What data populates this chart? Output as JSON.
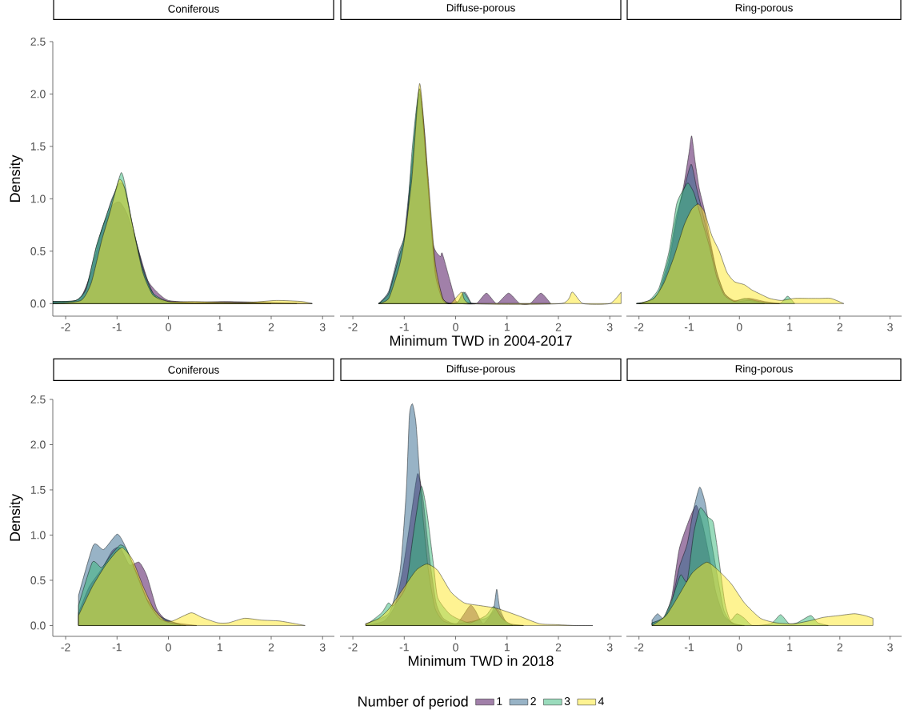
{
  "chart_data": [
    {
      "type": "area",
      "title": "Coniferous",
      "ylabel": "Density",
      "xlim": [
        -2.25,
        3.23
      ],
      "ylim": [
        -0.12,
        2.5
      ],
      "xticks": [
        -2,
        -1,
        0,
        1,
        2,
        3
      ],
      "yticks": [
        {
          "value": 0,
          "label": "0.0"
        },
        {
          "value": 0.5,
          "label": "0.5"
        },
        {
          "value": 1,
          "label": "1.0"
        },
        {
          "value": 1.5,
          "label": "1.5"
        },
        {
          "value": 2,
          "label": "2.0"
        },
        {
          "value": 2.5,
          "label": "2.5"
        }
      ],
      "series": [
        {
          "color": "#440154",
          "x": [
            -2.25,
            -1.9,
            -1.7,
            -1.5,
            -1.3,
            -1.1,
            -0.95,
            -0.8,
            -0.6,
            -0.4,
            -0.2,
            0,
            0.5,
            1.1,
            2,
            2.8
          ],
          "values": [
            0.02,
            0.02,
            0.06,
            0.3,
            0.7,
            0.93,
            0.97,
            0.85,
            0.54,
            0.22,
            0.1,
            0.03,
            0.01,
            0.02,
            0.01,
            0
          ]
        },
        {
          "color": "#31688e",
          "x": [
            -2.25,
            -1.8,
            -1.6,
            -1.4,
            -1.2,
            -1.1,
            -0.95,
            -0.85,
            -0.7,
            -0.5,
            -0.3,
            -0.1,
            0.5,
            1.5,
            2.5
          ],
          "values": [
            0.02,
            0.03,
            0.15,
            0.55,
            0.85,
            1.0,
            1.15,
            1.1,
            0.75,
            0.35,
            0.1,
            0.02,
            0.01,
            0.01,
            0
          ]
        },
        {
          "color": "#35b779",
          "x": [
            -2.25,
            -1.8,
            -1.6,
            -1.4,
            -1.2,
            -1.05,
            -0.92,
            -0.85,
            -0.7,
            -0.5,
            -0.3,
            0,
            0.5,
            2
          ],
          "values": [
            0.02,
            0.03,
            0.14,
            0.55,
            0.85,
            1.05,
            1.25,
            1.15,
            0.75,
            0.33,
            0.1,
            0.02,
            0,
            0
          ]
        },
        {
          "color": "#fde725",
          "x": [
            -2.25,
            -1.7,
            -1.5,
            -1.3,
            -1.15,
            -0.96,
            -0.85,
            -0.7,
            -0.5,
            -0.3,
            0,
            0.5,
            1.5,
            2.1,
            2.6,
            2.8
          ],
          "values": [
            0,
            0.03,
            0.2,
            0.6,
            0.85,
            1.18,
            1.1,
            0.75,
            0.3,
            0.08,
            0.02,
            0.02,
            0.01,
            0.03,
            0.02,
            0
          ]
        }
      ]
    },
    {
      "type": "area",
      "title": "Diffuse-porous",
      "xlabel": "Minimum TWD in 2004-2017",
      "tick_labels": "x",
      "xlim": [
        -2.25,
        3.23
      ],
      "ylim": [
        -0.12,
        2.5
      ],
      "xticks": [
        -2,
        -1,
        0,
        1,
        2,
        3
      ],
      "series": [
        {
          "color": "#440154",
          "x": [
            -1.5,
            -1.3,
            -1.1,
            -1.0,
            -0.85,
            -0.7,
            -0.6,
            -0.45,
            -0.3,
            -0.26,
            -0.1,
            0.0,
            0.1,
            0.4,
            0.6,
            0.8,
            1.03,
            1.25,
            1.45,
            1.66,
            1.85
          ],
          "values": [
            0,
            0.1,
            0.45,
            0.6,
            1.3,
            2.0,
            1.6,
            0.6,
            0.45,
            0.48,
            0.2,
            0.03,
            0,
            0,
            0.1,
            0,
            0.1,
            0,
            0,
            0.1,
            0
          ]
        },
        {
          "color": "#31688e",
          "x": [
            -1.5,
            -1.3,
            -1.1,
            -1.0,
            -0.85,
            -0.7,
            -0.55,
            -0.4,
            -0.25,
            -0.1,
            0.05,
            0.18,
            0.3,
            0.4
          ],
          "values": [
            0,
            0.12,
            0.5,
            0.65,
            1.35,
            2.05,
            1.2,
            0.35,
            0.05,
            0,
            0.02,
            0.11,
            0.01,
            0
          ]
        },
        {
          "color": "#35b779",
          "x": [
            -1.5,
            -1.3,
            -1.1,
            -0.95,
            -0.85,
            -0.7,
            -0.55,
            -0.4,
            -0.25,
            -0.1,
            0.05,
            0.15,
            0.3
          ],
          "values": [
            0,
            0.1,
            0.45,
            0.75,
            1.45,
            2.05,
            1.2,
            0.3,
            0.03,
            0,
            0.02,
            0.11,
            0
          ]
        },
        {
          "color": "#fde725",
          "x": [
            -1.5,
            -1.3,
            -1.1,
            -1.0,
            -0.85,
            -0.7,
            -0.55,
            -0.4,
            -0.25,
            -0.1,
            0.12,
            0.3,
            2.05,
            2.27,
            2.48,
            3.0,
            3.22
          ],
          "values": [
            0,
            0.05,
            0.35,
            0.6,
            1.2,
            2.1,
            1.3,
            0.4,
            0.05,
            0,
            0.11,
            0,
            0,
            0.11,
            0,
            0,
            0.11
          ]
        }
      ]
    },
    {
      "type": "area",
      "title": "Ring-porous",
      "tick_labels": "x",
      "xlim": [
        -2.25,
        3.23
      ],
      "ylim": [
        -0.12,
        2.5
      ],
      "xticks": [
        -2,
        -1,
        0,
        1,
        2,
        3
      ],
      "series": [
        {
          "color": "#440154",
          "x": [
            -2.05,
            -1.8,
            -1.6,
            -1.4,
            -1.25,
            -1.1,
            -1.0,
            -0.95,
            -0.88,
            -0.8,
            -0.7,
            -0.6,
            -0.45,
            -0.3,
            -0.1,
            0.2,
            0.5,
            0.8
          ],
          "values": [
            0,
            0.02,
            0.1,
            0.4,
            0.8,
            1.15,
            1.45,
            1.6,
            1.35,
            1.1,
            0.9,
            0.65,
            0.3,
            0.1,
            0.03,
            0.05,
            0.02,
            0
          ]
        },
        {
          "color": "#31688e",
          "x": [
            -2.05,
            -1.8,
            -1.6,
            -1.4,
            -1.25,
            -1.1,
            -0.96,
            -0.85,
            -0.75,
            -0.6,
            -0.45,
            -0.3,
            -0.1,
            0.2,
            0.5
          ],
          "values": [
            0,
            0.02,
            0.12,
            0.45,
            0.85,
            1.1,
            1.33,
            1.1,
            0.9,
            0.6,
            0.3,
            0.1,
            0.02,
            0.03,
            0
          ]
        },
        {
          "color": "#35b779",
          "x": [
            -2.05,
            -1.8,
            -1.6,
            -1.4,
            -1.25,
            -1.1,
            -1.02,
            -0.9,
            -0.75,
            -0.6,
            -0.45,
            -0.3,
            -0.1,
            0.1,
            0.4,
            0.8,
            0.96,
            1.1
          ],
          "values": [
            0,
            0.03,
            0.15,
            0.5,
            0.95,
            1.1,
            1.15,
            1.05,
            0.8,
            0.55,
            0.25,
            0.08,
            0.02,
            0.05,
            0.02,
            0,
            0.07,
            0
          ]
        },
        {
          "color": "#fde725",
          "x": [
            -2.0,
            -1.7,
            -1.5,
            -1.3,
            -1.1,
            -0.95,
            -0.82,
            -0.7,
            -0.55,
            -0.4,
            -0.25,
            -0.1,
            0.1,
            0.25,
            0.42,
            0.6,
            0.83,
            1.1,
            1.35,
            1.6,
            1.82,
            2.08
          ],
          "values": [
            0,
            0.05,
            0.2,
            0.45,
            0.75,
            0.9,
            0.95,
            0.88,
            0.65,
            0.5,
            0.3,
            0.21,
            0.18,
            0.13,
            0.09,
            0.05,
            0.03,
            0.05,
            0.05,
            0.05,
            0.05,
            0
          ]
        }
      ]
    },
    {
      "type": "area",
      "title": "Coniferous",
      "ylabel": "Density",
      "xlim": [
        -2.25,
        3.23
      ],
      "ylim": [
        -0.12,
        2.5
      ],
      "xticks": [
        -2,
        -1,
        0,
        1,
        2,
        3
      ],
      "yticks": [
        {
          "value": 0,
          "label": "0.0"
        },
        {
          "value": 0.5,
          "label": "0.5"
        },
        {
          "value": 1,
          "label": "1.0"
        },
        {
          "value": 1.5,
          "label": "1.5"
        },
        {
          "value": 2,
          "label": "2.0"
        },
        {
          "value": 2.5,
          "label": "2.5"
        }
      ],
      "series": [
        {
          "color": "#440154",
          "x": [
            -1.75,
            -1.54,
            -1.28,
            -1.09,
            -0.94,
            -0.76,
            -0.57,
            -0.42,
            -0.23,
            -0.08,
            0.13,
            0.55
          ],
          "values": [
            0.14,
            0.43,
            0.64,
            0.83,
            0.86,
            0.67,
            0.7,
            0.55,
            0.19,
            0.08,
            0.03,
            0
          ]
        },
        {
          "color": "#31688e",
          "x": [
            -1.75,
            -1.46,
            -1.26,
            -1.0,
            -0.86,
            -0.65,
            -0.44,
            -0.18,
            0.03,
            0.23
          ],
          "values": [
            0.33,
            0.89,
            0.84,
            1.01,
            0.9,
            0.61,
            0.31,
            0.11,
            0.05,
            0.01
          ]
        },
        {
          "color": "#35b779",
          "x": [
            -1.75,
            -1.48,
            -1.3,
            -1.12,
            -0.94,
            -0.81,
            -0.6,
            -0.39,
            -0.18,
            0.03,
            0.34
          ],
          "values": [
            0.22,
            0.7,
            0.64,
            0.78,
            0.89,
            0.84,
            0.55,
            0.25,
            0.08,
            0.03,
            0
          ]
        },
        {
          "color": "#fde725",
          "x": [
            -1.75,
            -1.48,
            -1.22,
            -1.02,
            -0.89,
            -0.7,
            -0.49,
            -0.29,
            -0.08,
            0.08,
            0.44,
            0.65,
            0.96,
            1.17,
            1.48,
            1.8,
            2.16,
            2.47,
            2.66
          ],
          "values": [
            0.11,
            0.43,
            0.67,
            0.81,
            0.86,
            0.73,
            0.43,
            0.19,
            0.06,
            0.05,
            0.14,
            0.09,
            0.03,
            0.03,
            0.08,
            0.06,
            0.05,
            0.02,
            0
          ]
        }
      ]
    },
    {
      "type": "area",
      "title": "Diffuse-porous",
      "xlabel": "Minimum TWD in 2018",
      "tick_labels": "x",
      "legend": "bottom",
      "legend_title": "Number of period",
      "xlim": [
        -2.25,
        3.23
      ],
      "ylim": [
        -0.12,
        2.5
      ],
      "xticks": [
        -2,
        -1,
        0,
        1,
        2,
        3
      ],
      "series": [
        {
          "name": "1",
          "color": "#440154",
          "x": [
            -1.75,
            -1.39,
            -1.18,
            -1.03,
            -0.87,
            -0.74,
            -0.64,
            -0.51,
            -0.38,
            -0.24,
            0.02,
            0.28,
            0.38,
            0.54,
            0.8,
            1.0,
            1.32
          ],
          "values": [
            0,
            0.05,
            0.22,
            0.61,
            1.2,
            1.68,
            1.43,
            0.76,
            0.25,
            0.08,
            0.02,
            0.22,
            0.17,
            0.02,
            0.19,
            0.02,
            0
          ]
        },
        {
          "name": "2",
          "color": "#31688e",
          "x": [
            -1.75,
            -1.29,
            -1.08,
            -0.96,
            -0.9,
            -0.84,
            -0.77,
            -0.66,
            -0.53,
            -0.4,
            -0.24,
            0.02,
            0.59,
            0.74,
            0.8,
            0.86,
            1.0,
            1.32
          ],
          "values": [
            0.02,
            0.14,
            0.61,
            1.49,
            2.32,
            2.45,
            2.23,
            1.35,
            0.61,
            0.19,
            0.05,
            0.02,
            0.08,
            0.19,
            0.4,
            0.19,
            0.03,
            0
          ]
        },
        {
          "name": "3",
          "color": "#35b779",
          "x": [
            -1.75,
            -1.44,
            -1.31,
            -1.21,
            -0.97,
            -0.82,
            -0.67,
            -0.56,
            -0.43,
            -0.35,
            -0.14,
            0.02,
            0.28,
            0.59,
            0.74,
            0.9,
            1.11
          ],
          "values": [
            0,
            0.14,
            0.25,
            0.22,
            0.43,
            1.02,
            1.54,
            1.26,
            0.67,
            0.31,
            0.14,
            0.08,
            0.03,
            0.11,
            0.21,
            0.08,
            0
          ]
        },
        {
          "name": "4",
          "color": "#fde725",
          "x": [
            -1.75,
            -1.49,
            -1.29,
            -1.03,
            -0.77,
            -0.56,
            -0.35,
            -0.09,
            0.17,
            0.48,
            0.8,
            1.21,
            1.63,
            1.94,
            2.31,
            2.67
          ],
          "values": [
            0.02,
            0.08,
            0.19,
            0.4,
            0.61,
            0.68,
            0.61,
            0.37,
            0.25,
            0.22,
            0.19,
            0.11,
            0.02,
            0.01,
            0,
            0
          ]
        }
      ]
    },
    {
      "type": "area",
      "title": "Ring-porous",
      "tick_labels": "x",
      "xlim": [
        -2.25,
        3.23
      ],
      "ylim": [
        -0.12,
        2.5
      ],
      "xticks": [
        -2,
        -1,
        0,
        1,
        2,
        3
      ],
      "series": [
        {
          "color": "#440154",
          "x": [
            -1.74,
            -1.51,
            -1.35,
            -1.2,
            -1.02,
            -0.86,
            -0.73,
            -0.6,
            -0.47,
            -0.31,
            -0.1,
            0.1
          ],
          "values": [
            0.03,
            0.08,
            0.31,
            0.84,
            1.14,
            1.33,
            1.11,
            0.76,
            0.37,
            0.11,
            0.02,
            0
          ]
        },
        {
          "color": "#31688e",
          "x": [
            -1.74,
            -1.63,
            -1.51,
            -1.35,
            -1.2,
            -1.04,
            -0.91,
            -0.79,
            -0.68,
            -0.55,
            -0.42,
            -0.31,
            -0.16,
            0.05
          ],
          "values": [
            0.06,
            0.13,
            0.08,
            0.25,
            0.64,
            0.9,
            1.29,
            1.53,
            1.35,
            0.9,
            0.49,
            0.17,
            0.03,
            0
          ]
        },
        {
          "color": "#35b779",
          "x": [
            -1.74,
            -1.51,
            -1.33,
            -1.17,
            -1.04,
            -0.91,
            -0.78,
            -0.63,
            -0.52,
            -0.42,
            -0.29,
            -0.18,
            -0.05,
            0.1,
            0.26,
            0.63,
            0.82,
            0.99,
            1.15,
            1.42,
            1.56,
            1.77
          ],
          "values": [
            0.03,
            0.09,
            0.31,
            0.56,
            0.49,
            1.02,
            1.3,
            1.2,
            1.14,
            0.78,
            0.25,
            0.06,
            0.13,
            0.08,
            0,
            0.02,
            0.12,
            0.02,
            0.03,
            0.11,
            0.03,
            0
          ]
        },
        {
          "color": "#fde725",
          "x": [
            -1.74,
            -1.46,
            -1.2,
            -0.94,
            -0.65,
            -0.42,
            -0.16,
            0.1,
            0.42,
            0.73,
            1.09,
            1.46,
            1.67,
            1.98,
            2.29,
            2.5,
            2.66
          ],
          "values": [
            0,
            0.11,
            0.34,
            0.58,
            0.7,
            0.61,
            0.46,
            0.25,
            0.08,
            0.03,
            0.02,
            0.06,
            0.09,
            0.11,
            0.13,
            0.11,
            0.08
          ]
        }
      ]
    }
  ]
}
